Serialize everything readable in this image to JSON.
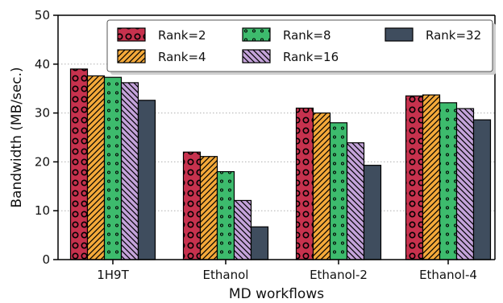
{
  "chart_data": {
    "type": "bar",
    "title": "",
    "xlabel": "MD workflows",
    "ylabel": "Bandwidth (MB/sec.)",
    "ylim": [
      0,
      50
    ],
    "yticks": [
      0,
      10,
      20,
      30,
      40,
      50
    ],
    "grid": "y-dotted",
    "legend_position": "top-right",
    "categories": [
      "1H9T",
      "Ethanol",
      "Ethanol-2",
      "Ethanol-4"
    ],
    "series": [
      {
        "name": "Rank=2",
        "values": [
          39.0,
          22.0,
          31.0,
          33.5
        ],
        "color": "#c7324e",
        "pattern": "circles"
      },
      {
        "name": "Rank=4",
        "values": [
          37.6,
          21.1,
          30.0,
          33.7
        ],
        "color": "#f4a93a",
        "pattern": "diagonal"
      },
      {
        "name": "Rank=8",
        "values": [
          37.3,
          18.0,
          28.0,
          32.1
        ],
        "color": "#3dbb6d",
        "pattern": "dots"
      },
      {
        "name": "Rank=16",
        "values": [
          36.2,
          12.1,
          23.9,
          30.9
        ],
        "color": "#c4a3da",
        "pattern": "backslash"
      },
      {
        "name": "Rank=32",
        "values": [
          32.6,
          6.7,
          19.3,
          28.6
        ],
        "color": "#3f4d5e",
        "pattern": "none"
      }
    ]
  }
}
